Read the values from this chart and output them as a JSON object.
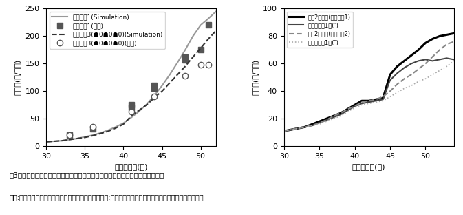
{
  "left": {
    "xlabel": "播種後日数(日)",
    "ylabel": "総葉数(枚/個体)",
    "xlim": [
      30,
      52
    ],
    "ylim": [
      0,
      250
    ],
    "xticks": [
      30,
      35,
      40,
      45,
      50
    ],
    "yticks": [
      0,
      50,
      100,
      150,
      200,
      250
    ],
    "sharp1_sim_x": [
      30,
      31,
      32,
      33,
      34,
      35,
      36,
      37,
      38,
      39,
      40,
      41,
      42,
      43,
      44,
      45,
      46,
      47,
      48,
      49,
      50,
      51,
      52
    ],
    "sharp1_sim_y": [
      8,
      9,
      10,
      12,
      14,
      17,
      20,
      24,
      29,
      35,
      42,
      52,
      63,
      76,
      92,
      110,
      130,
      152,
      175,
      200,
      220,
      232,
      245
    ],
    "sharp1_obs_x": [
      33,
      36,
      41,
      41,
      44,
      44,
      48,
      48,
      50,
      51
    ],
    "sharp1_obs_y": [
      20,
      32,
      70,
      75,
      105,
      110,
      157,
      162,
      175,
      220
    ],
    "suisei_sim_x": [
      30,
      31,
      32,
      33,
      34,
      35,
      36,
      37,
      38,
      39,
      40,
      41,
      42,
      43,
      44,
      45,
      46,
      47,
      48,
      49,
      50,
      51,
      52
    ],
    "suisei_sim_y": [
      8,
      9,
      10,
      12,
      14,
      16,
      19,
      23,
      27,
      33,
      40,
      55,
      65,
      75,
      88,
      100,
      115,
      130,
      145,
      162,
      178,
      195,
      210
    ],
    "suisei_obs_x": [
      33,
      36,
      41,
      44,
      48,
      50,
      51
    ],
    "suisei_obs_y": [
      20,
      35,
      63,
      90,
      128,
      148,
      148
    ],
    "legend": [
      "シャープ1(Simulation)",
      "シャープ1(実測)",
      "翠星節成3(☗0☗0☗0)(Simulation)",
      "翠星節成3(☗0☗0☗0)(実測)"
    ]
  },
  "right": {
    "xlabel": "播種後日数(日)",
    "ylabel": "総葉数(枚/個体)",
    "xlim": [
      30,
      54
    ],
    "ylim": [
      0,
      100
    ],
    "xticks": [
      30,
      35,
      40,
      45,
      50
    ],
    "yticks": [
      0,
      20,
      40,
      60,
      80,
      100
    ],
    "line1_x": [
      30,
      31,
      32,
      33,
      34,
      35,
      36,
      37,
      38,
      39,
      40,
      41,
      42,
      43,
      44,
      45,
      46,
      47,
      48,
      49,
      50,
      51,
      52,
      53,
      54
    ],
    "line1_y": [
      11,
      12,
      13,
      14,
      16,
      18,
      20,
      22,
      24,
      27,
      30,
      33,
      33,
      34,
      35,
      52,
      58,
      62,
      66,
      70,
      75,
      78,
      80,
      81,
      82
    ],
    "line2_x": [
      30,
      31,
      32,
      33,
      34,
      35,
      36,
      37,
      38,
      39,
      40,
      41,
      42,
      43,
      44,
      45,
      46,
      47,
      48,
      49,
      50,
      51,
      52,
      53,
      54
    ],
    "line2_y": [
      11,
      12,
      13,
      14,
      15,
      17,
      19,
      21,
      23,
      26,
      29,
      31,
      32,
      33,
      34,
      48,
      53,
      57,
      60,
      62,
      63,
      62,
      63,
      64,
      63
    ],
    "line3_x": [
      30,
      31,
      32,
      33,
      34,
      35,
      36,
      37,
      38,
      39,
      40,
      41,
      42,
      43,
      44,
      45,
      46,
      47,
      48,
      49,
      50,
      51,
      52,
      53,
      54
    ],
    "line3_y": [
      11,
      12,
      13,
      14,
      15,
      17,
      19,
      22,
      24,
      27,
      29,
      32,
      33,
      34,
      36,
      40,
      45,
      49,
      52,
      56,
      60,
      65,
      70,
      74,
      76
    ],
    "line4_x": [
      30,
      31,
      32,
      33,
      34,
      35,
      36,
      37,
      38,
      39,
      40,
      41,
      42,
      43,
      44,
      45,
      46,
      47,
      48,
      49,
      50,
      51,
      52,
      53,
      54
    ],
    "line4_y": [
      11,
      12,
      13,
      14,
      15,
      16,
      18,
      20,
      22,
      25,
      28,
      30,
      31,
      32,
      33,
      36,
      39,
      42,
      44,
      47,
      49,
      52,
      55,
      58,
      62
    ],
    "legend": [
      "側枝2節摚心(シャープ1)",
      "主枝＋側枝1本(″)",
      "側枝2節摚心(翠星節成2)",
      "主枝＋側枝1本(″)"
    ]
  },
  "caption_line1": "図3　品種および整枝方法が異なる場合の総葉数についてのシミュレーション例",
  "caption_line2": "（左:整枝を行わない場合の総葉数の推移と実測値．右:異なる２種の整枝法を行った場合の総葉数の推移）",
  "colors": {
    "sharp1_sim": "#999999",
    "sharp1_obs": "#555555",
    "suisei_sim": "#333333",
    "suisei_obs": "#888888",
    "line1": "#000000",
    "line2": "#444444",
    "line3": "#888888",
    "line4": "#aaaaaa"
  }
}
